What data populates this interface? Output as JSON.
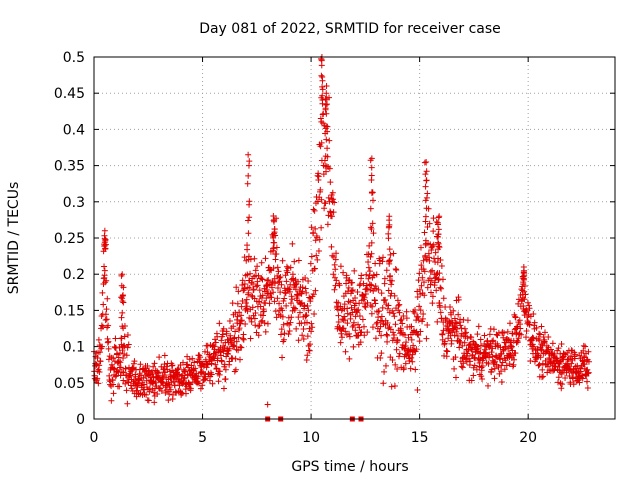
{
  "chart_data": {
    "type": "scatter",
    "title": "Day 081 of 2022, SRMTID for receiver case",
    "xlabel": "GPS time / hours",
    "ylabel": "SRMTID / TECUs",
    "xlim": [
      0,
      24
    ],
    "ylim": [
      0,
      0.5
    ],
    "x_ticks": [
      "0",
      "5",
      "10",
      "15",
      "20"
    ],
    "y_ticks": [
      "0",
      "0.05",
      "0.1",
      "0.15",
      "0.2",
      "0.25",
      "0.3",
      "0.35",
      "0.4",
      "0.45",
      "0.5"
    ],
    "grid": true,
    "marker": "+",
    "color": "#e00000",
    "envelope": [
      [
        0.0,
        0.07,
        0.04
      ],
      [
        0.3,
        0.08,
        0.03
      ],
      [
        0.5,
        0.22,
        0.06
      ],
      [
        0.6,
        0.13,
        0.04
      ],
      [
        0.8,
        0.06,
        0.03
      ],
      [
        1.3,
        0.09,
        0.05
      ],
      [
        2.0,
        0.05,
        0.02
      ],
      [
        3.0,
        0.055,
        0.025
      ],
      [
        4.0,
        0.055,
        0.025
      ],
      [
        5.0,
        0.07,
        0.025
      ],
      [
        5.5,
        0.085,
        0.03
      ],
      [
        6.0,
        0.09,
        0.04
      ],
      [
        6.5,
        0.11,
        0.04
      ],
      [
        7.0,
        0.17,
        0.06
      ],
      [
        7.5,
        0.17,
        0.06
      ],
      [
        8.0,
        0.16,
        0.05
      ],
      [
        8.3,
        0.22,
        0.07
      ],
      [
        8.7,
        0.15,
        0.05
      ],
      [
        9.3,
        0.18,
        0.05
      ],
      [
        9.8,
        0.14,
        0.05
      ],
      [
        10.2,
        0.22,
        0.09
      ],
      [
        10.5,
        0.4,
        0.09
      ],
      [
        10.8,
        0.35,
        0.09
      ],
      [
        11.2,
        0.15,
        0.05
      ],
      [
        11.6,
        0.15,
        0.05
      ],
      [
        12.2,
        0.15,
        0.05
      ],
      [
        12.8,
        0.19,
        0.08
      ],
      [
        13.3,
        0.15,
        0.07
      ],
      [
        13.8,
        0.14,
        0.07
      ],
      [
        14.3,
        0.1,
        0.04
      ],
      [
        14.8,
        0.11,
        0.04
      ],
      [
        15.3,
        0.22,
        0.07
      ],
      [
        15.8,
        0.2,
        0.07
      ],
      [
        16.2,
        0.12,
        0.04
      ],
      [
        16.7,
        0.12,
        0.04
      ],
      [
        17.3,
        0.09,
        0.03
      ],
      [
        18.0,
        0.09,
        0.03
      ],
      [
        18.8,
        0.09,
        0.03
      ],
      [
        19.3,
        0.1,
        0.03
      ],
      [
        19.8,
        0.17,
        0.04
      ],
      [
        20.3,
        0.1,
        0.03
      ],
      [
        21.0,
        0.08,
        0.025
      ],
      [
        22.0,
        0.075,
        0.025
      ],
      [
        22.8,
        0.07,
        0.025
      ]
    ],
    "spikes": [
      [
        0.5,
        0.26
      ],
      [
        1.3,
        0.2
      ],
      [
        7.1,
        0.365
      ],
      [
        8.3,
        0.275
      ],
      [
        10.5,
        0.5
      ],
      [
        10.7,
        0.45
      ],
      [
        12.8,
        0.36
      ],
      [
        13.6,
        0.28
      ],
      [
        15.3,
        0.355
      ],
      [
        15.9,
        0.28
      ],
      [
        19.8,
        0.21
      ]
    ],
    "baseline_points": [
      [
        8.0,
        0.0
      ],
      [
        8.6,
        0.0
      ],
      [
        11.9,
        0.0
      ],
      [
        12.3,
        0.0
      ]
    ],
    "outliers": [
      [
        8.0,
        0.02
      ],
      [
        14.9,
        0.04
      ]
    ]
  }
}
